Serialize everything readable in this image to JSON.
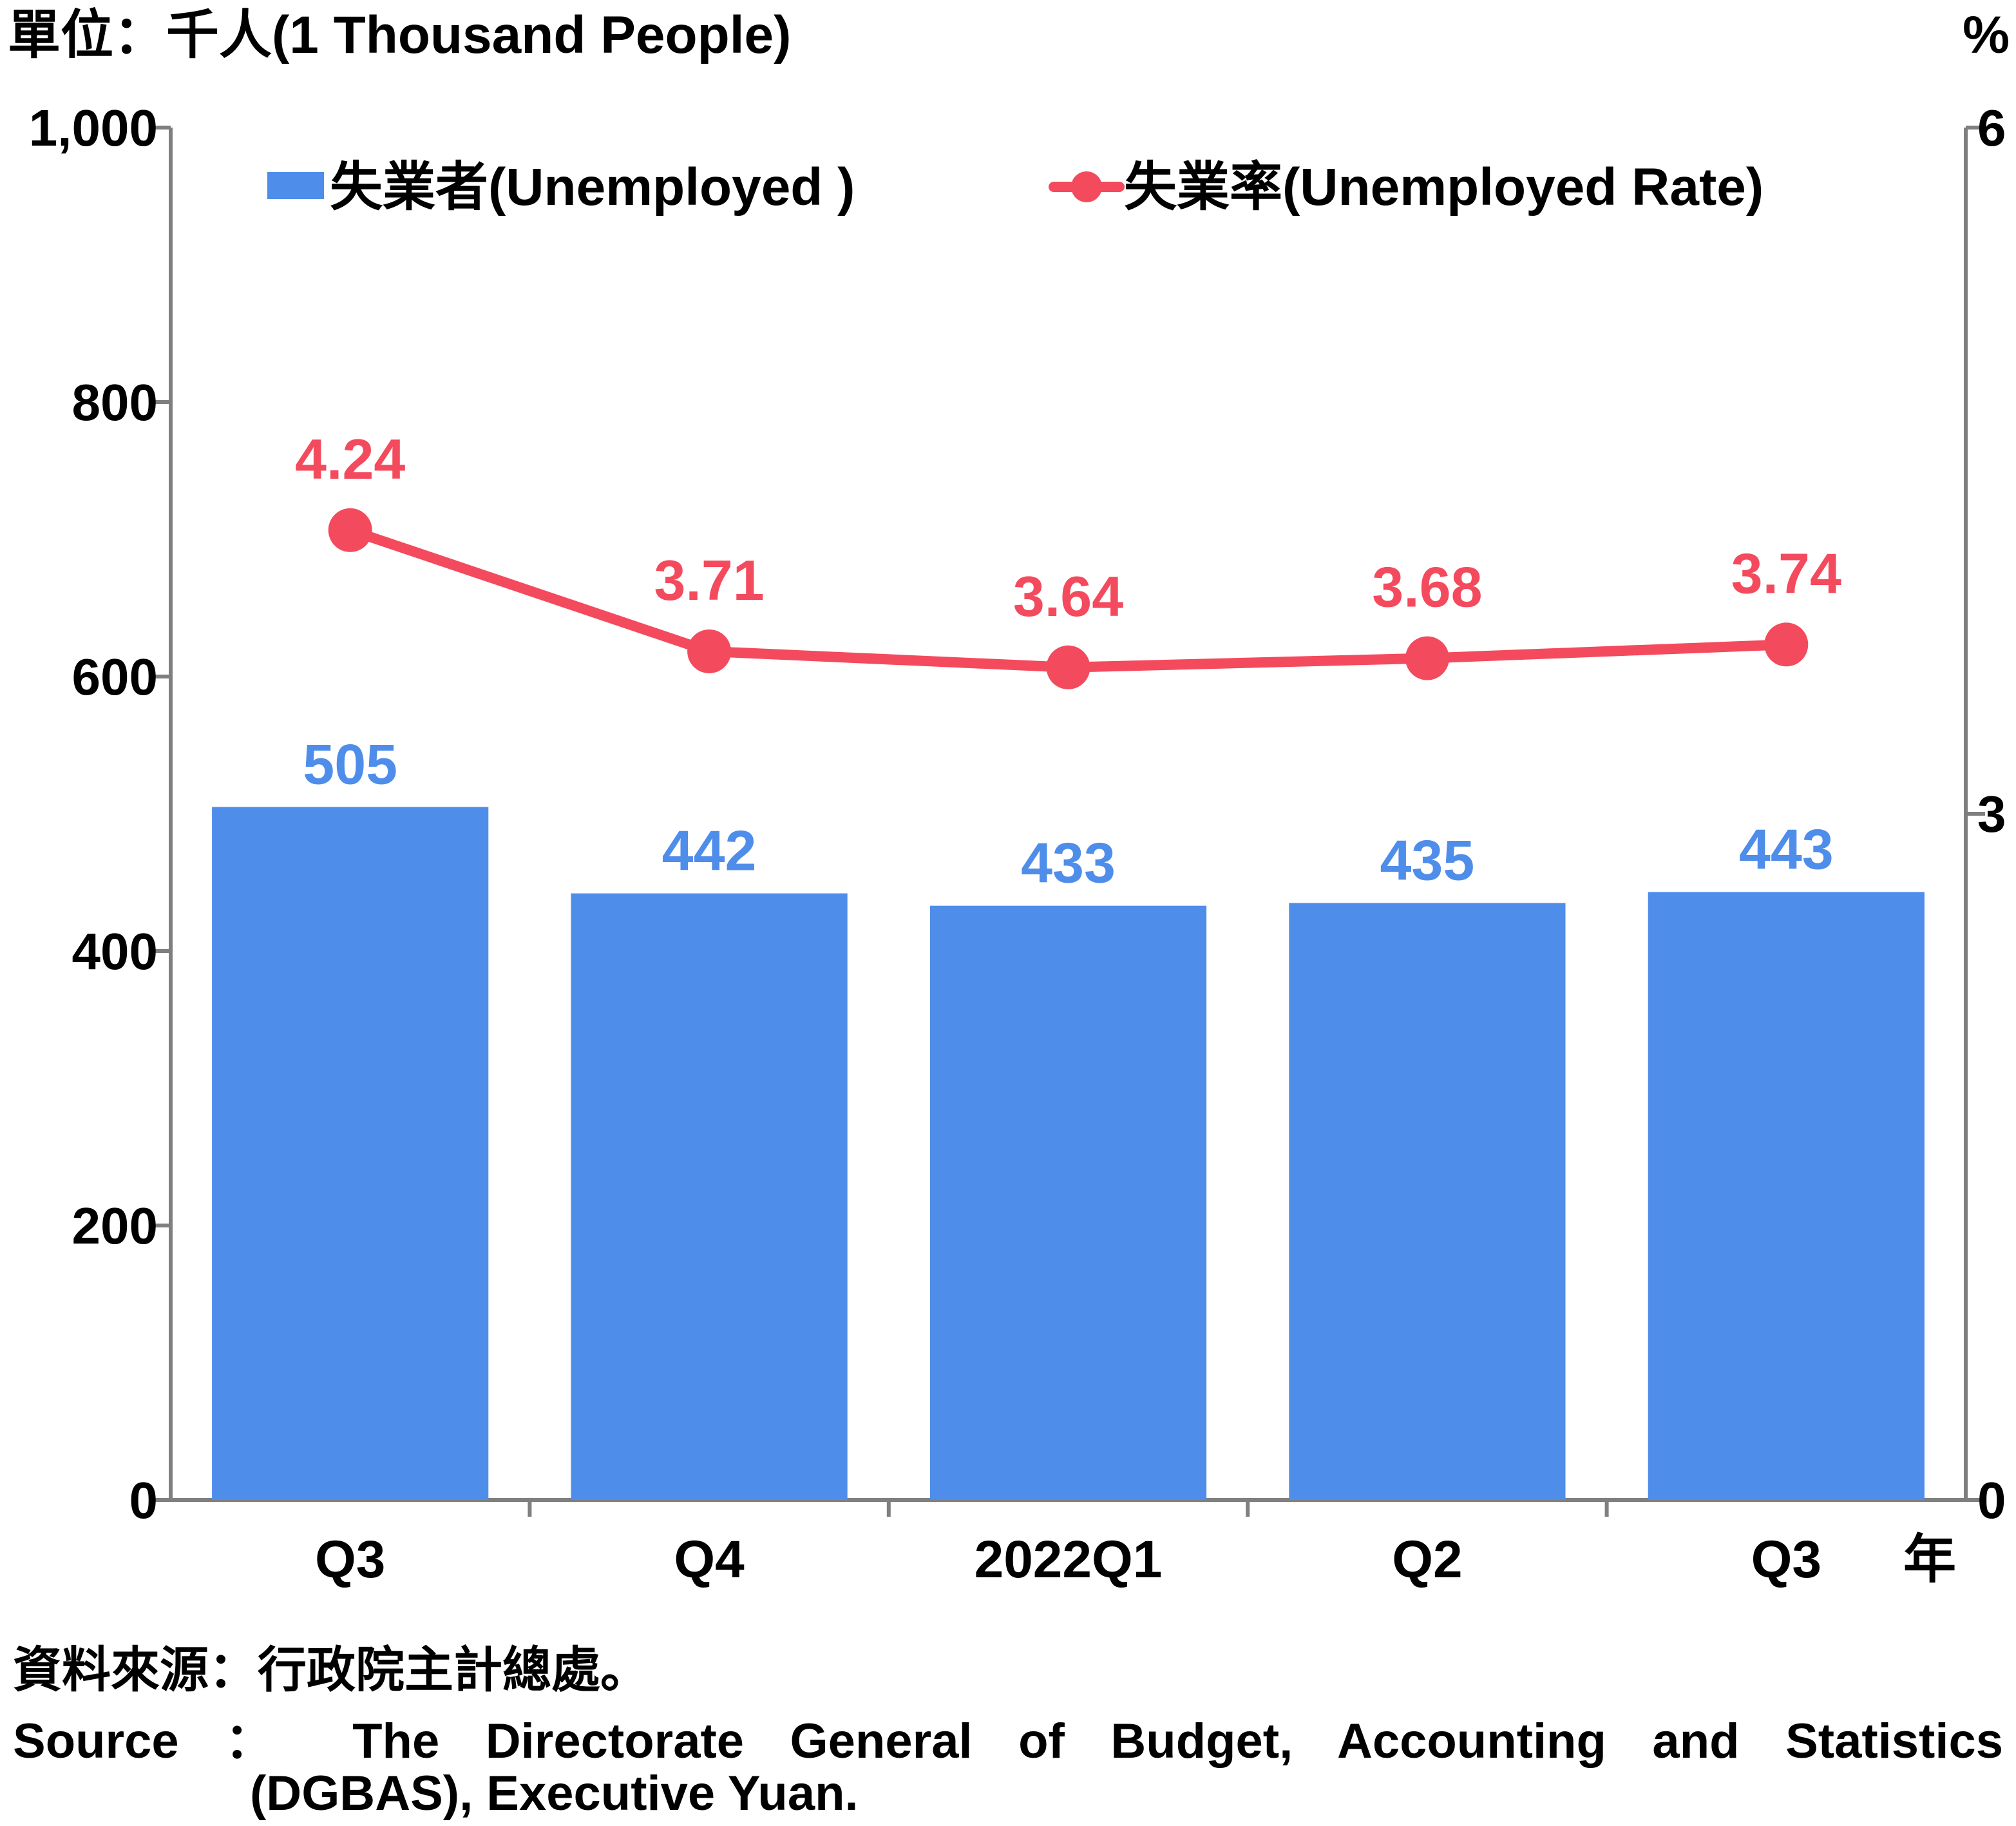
{
  "chart_data": {
    "type": "bar+line",
    "unit_left": "單位：千人(1 Thousand People)",
    "unit_right": "%",
    "categories": [
      "Q3",
      "Q4",
      "2022Q1",
      "Q2",
      "Q3"
    ],
    "x_axis_suffix": "年",
    "series": [
      {
        "name": "失業者(Unemployed )",
        "type": "bar",
        "axis": "left",
        "values": [
          505,
          442,
          433,
          435,
          443
        ],
        "labels": [
          "505",
          "442",
          "433",
          "435",
          "443"
        ],
        "color": "#4f8deb"
      },
      {
        "name": "失業率(Unemployed Rate)",
        "type": "line",
        "axis": "right",
        "values": [
          4.24,
          3.71,
          3.64,
          3.68,
          3.74
        ],
        "labels": [
          "4.24",
          "3.71",
          "3.64",
          "3.68",
          "3.74"
        ],
        "color": "#f44a5d"
      }
    ],
    "y_left": {
      "ylim": [
        0,
        1000
      ],
      "ticks": [
        0,
        200,
        400,
        600,
        800,
        1000
      ],
      "tick_labels": [
        "0",
        "200",
        "400",
        "600",
        "800",
        "1,000"
      ]
    },
    "y_right": {
      "ylim": [
        0,
        6
      ],
      "ticks": [
        0,
        3,
        6
      ],
      "tick_labels": [
        "0",
        "3",
        "6"
      ]
    },
    "legend_position": "top",
    "grid": false
  },
  "source": {
    "cn": "資料來源：行政院主計總處。",
    "en": "Source ： The Directorate General of Budget, Accounting and Statistics",
    "en2": "(DGBAS), Executive Yuan."
  }
}
